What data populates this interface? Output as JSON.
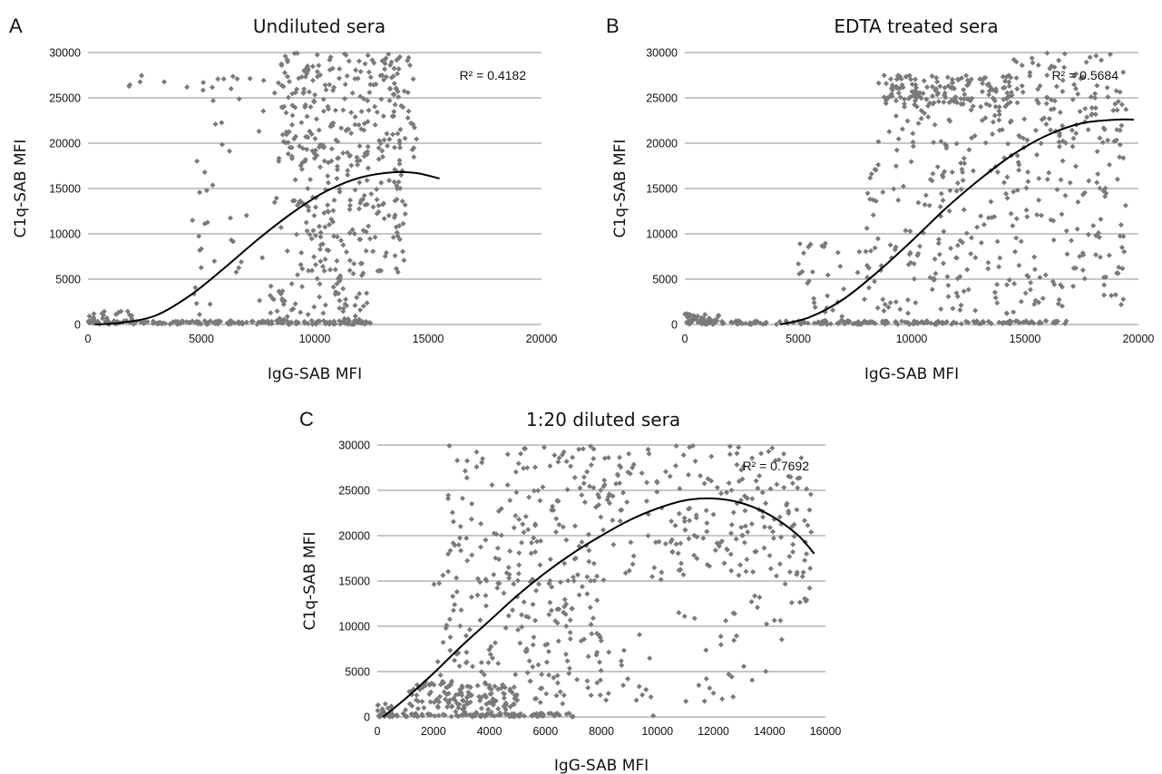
{
  "chart_data": [
    {
      "type": "scatter",
      "panel": "A",
      "title": "Undiluted sera",
      "xlabel": "IgG-SAB MFI",
      "ylabel": "C1q-SAB MFI",
      "xlim": [
        0,
        20000
      ],
      "ylim": [
        0,
        30000
      ],
      "xticks": [
        "0",
        "5000",
        "10000",
        "15000",
        "20000"
      ],
      "yticks": [
        "0",
        "5000",
        "10000",
        "15000",
        "20000",
        "25000",
        "30000"
      ],
      "grid": "horizontal",
      "annotation": "R² = 0.4182",
      "trendline": {
        "x": [
          300,
          1500,
          3000,
          4500,
          6000,
          7500,
          9000,
          10500,
          12000,
          13500,
          14500,
          15500
        ],
        "y": [
          0,
          200,
          1000,
          3200,
          6200,
          9400,
          12300,
          14700,
          16200,
          16800,
          16700,
          16100
        ]
      },
      "point_groups": [
        {
          "x": [
            0,
            12500
          ],
          "y": [
            0,
            400
          ],
          "count": 170
        },
        {
          "x": [
            0,
            2000
          ],
          "y": [
            0,
            1600
          ],
          "count": 30
        },
        {
          "x": [
            1500,
            8500
          ],
          "y": [
            25500,
            27500
          ],
          "count": 18
        },
        {
          "x": [
            8000,
            12500
          ],
          "y": [
            0,
            5500
          ],
          "count": 70
        },
        {
          "x": [
            8500,
            14500
          ],
          "y": [
            18000,
            30000
          ],
          "count": 240
        },
        {
          "x": [
            9000,
            14000
          ],
          "y": [
            5000,
            18000
          ],
          "count": 160
        },
        {
          "x": [
            4500,
            9000
          ],
          "y": [
            500,
            25000
          ],
          "count": 45
        }
      ]
    },
    {
      "type": "scatter",
      "panel": "B",
      "title": "EDTA treated sera",
      "xlabel": "IgG-SAB MFI",
      "ylabel": "C1q-SAB MFI",
      "xlim": [
        0,
        20000
      ],
      "ylim": [
        0,
        30000
      ],
      "xticks": [
        "0",
        "5000",
        "10000",
        "15000",
        "20000"
      ],
      "yticks": [
        "0",
        "5000",
        "10000",
        "15000",
        "20000",
        "25000",
        "30000"
      ],
      "grid": "horizontal",
      "annotation": "R² = 0.5684",
      "trendline": {
        "x": [
          4200,
          5500,
          7000,
          8500,
          10000,
          11500,
          13000,
          14500,
          16000,
          17500,
          19000,
          19800
        ],
        "y": [
          0,
          800,
          2800,
          5800,
          9200,
          12800,
          16000,
          18800,
          20900,
          22200,
          22600,
          22600
        ]
      },
      "point_groups": [
        {
          "x": [
            0,
            17000
          ],
          "y": [
            0,
            400
          ],
          "count": 200
        },
        {
          "x": [
            0,
            1500
          ],
          "y": [
            0,
            1200
          ],
          "count": 30
        },
        {
          "x": [
            8500,
            14500
          ],
          "y": [
            24000,
            27500
          ],
          "count": 160
        },
        {
          "x": [
            8000,
            19500
          ],
          "y": [
            1000,
            24000
          ],
          "count": 320
        },
        {
          "x": [
            14500,
            19500
          ],
          "y": [
            20000,
            30000
          ],
          "count": 90
        },
        {
          "x": [
            5000,
            9000
          ],
          "y": [
            0,
            9500
          ],
          "count": 40
        }
      ]
    },
    {
      "type": "scatter",
      "panel": "C",
      "title": "1:20 diluted sera",
      "xlabel": "IgG-SAB MFI",
      "ylabel": "C1q-SAB MFI",
      "xlim": [
        0,
        16000
      ],
      "ylim": [
        0,
        30000
      ],
      "xticks": [
        "0",
        "2000",
        "4000",
        "6000",
        "8000",
        "10000",
        "12000",
        "14000",
        "16000"
      ],
      "yticks": [
        "0",
        "5000",
        "10000",
        "15000",
        "20000",
        "25000",
        "30000"
      ],
      "grid": "horizontal",
      "annotation": "R² = 0.7692",
      "trendline": {
        "x": [
          200,
          1000,
          2000,
          3000,
          4000,
          5000,
          6000,
          7000,
          8000,
          9000,
          10000,
          11000,
          12000,
          13000,
          14000,
          15000,
          15600
        ],
        "y": [
          0,
          2000,
          4800,
          7800,
          10600,
          13400,
          15900,
          18100,
          20000,
          21700,
          23000,
          23900,
          24100,
          23600,
          22300,
          20100,
          18000
        ]
      },
      "point_groups": [
        {
          "x": [
            0,
            7000
          ],
          "y": [
            0,
            400
          ],
          "count": 110
        },
        {
          "x": [
            0,
            500
          ],
          "y": [
            0,
            1500
          ],
          "count": 25
        },
        {
          "x": [
            1000,
            5000
          ],
          "y": [
            400,
            4000
          ],
          "count": 120
        },
        {
          "x": [
            2000,
            8000
          ],
          "y": [
            1000,
            16000
          ],
          "count": 160
        },
        {
          "x": [
            2500,
            15500
          ],
          "y": [
            15000,
            30000
          ],
          "count": 330
        },
        {
          "x": [
            5000,
            14500
          ],
          "y": [
            0,
            12000
          ],
          "count": 60
        },
        {
          "x": [
            13000,
            15500
          ],
          "y": [
            12000,
            24000
          ],
          "count": 40
        }
      ]
    }
  ]
}
